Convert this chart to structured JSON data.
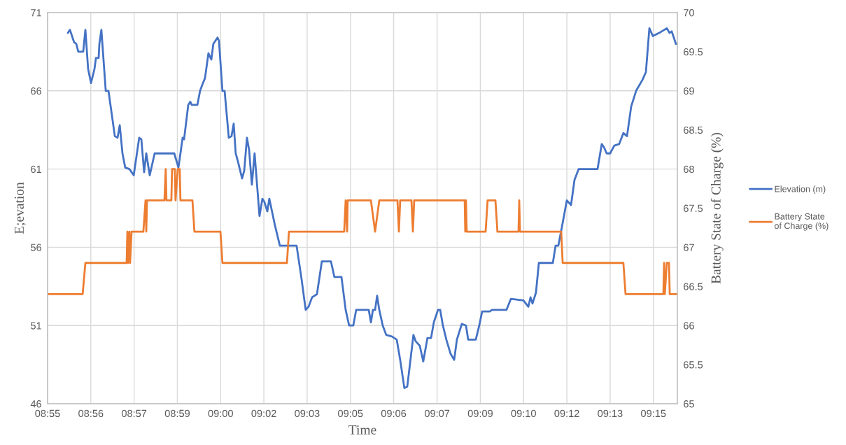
{
  "chart_data": {
    "type": "line",
    "xlabel": "Time",
    "ylabel": "E;evation",
    "y2label": "Battery State of Charge (%)",
    "xlim": [
      8.9095,
      9.256
    ],
    "ylim": [
      46,
      71
    ],
    "y2lim": [
      65,
      70
    ],
    "xticks": [
      {
        "value": 8.9095,
        "label": "08:55"
      },
      {
        "value": 8.9333,
        "label": "08:56"
      },
      {
        "value": 8.9571,
        "label": "08:57"
      },
      {
        "value": 8.9809,
        "label": "08:59"
      },
      {
        "value": 9.0047,
        "label": "09:00"
      },
      {
        "value": 9.0285,
        "label": "09:02"
      },
      {
        "value": 9.0523,
        "label": "09:03"
      },
      {
        "value": 9.0761,
        "label": "09:05"
      },
      {
        "value": 9.0999,
        "label": "09:06"
      },
      {
        "value": 9.1238,
        "label": "09:07"
      },
      {
        "value": 9.1476,
        "label": "09:09"
      },
      {
        "value": 9.1714,
        "label": "09:10"
      },
      {
        "value": 9.1952,
        "label": "09:12"
      },
      {
        "value": 9.219,
        "label": "09:13"
      },
      {
        "value": 9.2428,
        "label": "09:15"
      }
    ],
    "yticks": [
      46,
      51,
      56,
      61,
      66,
      71
    ],
    "y2ticks": [
      65,
      65.5,
      66,
      66.5,
      67,
      67.5,
      68,
      68.5,
      69,
      69.5,
      70
    ],
    "grid": true,
    "legend": "right",
    "line_style": "solid",
    "marker": "none",
    "series": [
      {
        "name": "Elevation (m)",
        "color": "#4472c4",
        "x": [
          8.9207,
          8.9218,
          8.9241,
          8.9253,
          8.9264,
          8.9291,
          8.9303,
          8.9318,
          8.9334,
          8.9353,
          8.9361,
          8.9376,
          8.938,
          8.9391,
          8.9415,
          8.943,
          8.9465,
          8.948,
          8.9492,
          8.9507,
          8.9522,
          8.9545,
          8.9569,
          8.9599,
          8.9611,
          8.9626,
          8.9638,
          8.9657,
          8.9684,
          8.9792,
          8.9815,
          8.9826,
          8.9838,
          8.9846,
          8.9869,
          8.988,
          8.9888,
          8.9919,
          8.9934,
          8.995,
          8.9961,
          8.998,
          8.9996,
          9.0007,
          9.003,
          9.0038,
          9.0057,
          9.0069,
          9.0092,
          9.0107,
          9.0119,
          9.013,
          9.0142,
          9.0165,
          9.0177,
          9.0192,
          9.0204,
          9.0219,
          9.0234,
          9.0261,
          9.0277,
          9.0288,
          9.0304,
          9.0315,
          9.0346,
          9.0373,
          9.0465,
          9.0492,
          9.0515,
          9.0531,
          9.055,
          9.0577,
          9.0604,
          9.0654,
          9.0673,
          9.0712,
          9.0735,
          9.0754,
          9.0777,
          9.0793,
          9.0862,
          9.0874,
          9.0885,
          9.0897,
          9.0908,
          9.092,
          9.0939,
          9.0958,
          9.0989,
          9.1016,
          9.1035,
          9.1058,
          9.1074,
          9.1108,
          9.112,
          9.1143,
          9.1162,
          9.1185,
          9.1205,
          9.122,
          9.1243,
          9.1255,
          9.127,
          9.1289,
          9.1312,
          9.1332,
          9.1347,
          9.1374,
          9.1397,
          9.1409,
          9.1451,
          9.147,
          9.1486,
          9.1528,
          9.154,
          9.162,
          9.1644,
          9.1713,
          9.174,
          9.1752,
          9.1763,
          9.1782,
          9.1798,
          9.1875,
          9.189,
          9.1905,
          9.1925,
          9.1952,
          9.1975,
          9.1994,
          9.2017,
          9.2121,
          9.2144,
          9.2156,
          9.2171,
          9.219,
          9.2213,
          9.224,
          9.2263,
          9.2283,
          9.2306,
          9.2333,
          9.2368,
          9.2387,
          9.2406,
          9.2425,
          9.246,
          9.2502,
          9.2517,
          9.2529,
          9.2552,
          9.256
        ],
        "values": [
          69.7,
          69.9,
          69.1,
          69.0,
          68.5,
          68.5,
          69.9,
          67.4,
          66.5,
          67.4,
          68.1,
          68.1,
          69.0,
          69.9,
          66.0,
          66.0,
          63.1,
          63.0,
          63.8,
          62.0,
          61.1,
          61.0,
          60.6,
          63.0,
          62.9,
          60.8,
          62.0,
          60.6,
          62.0,
          62.0,
          61.1,
          62.0,
          63.0,
          62.9,
          65.1,
          65.3,
          65.1,
          65.1,
          66.0,
          66.5,
          66.8,
          68.4,
          68.0,
          69.0,
          69.4,
          69.2,
          66.0,
          66.0,
          63.0,
          63.1,
          63.9,
          62.0,
          61.5,
          60.4,
          60.9,
          63.0,
          62.2,
          60.0,
          62.0,
          58.0,
          59.1,
          58.9,
          58.3,
          59.1,
          57.4,
          56.1,
          56.1,
          54.0,
          52.0,
          52.2,
          52.8,
          53.0,
          55.1,
          55.1,
          54.1,
          54.1,
          52.0,
          51.0,
          51.0,
          52.0,
          52.0,
          51.2,
          52.0,
          52.0,
          52.9,
          52.0,
          51.0,
          50.4,
          50.3,
          50.1,
          48.8,
          47.0,
          47.1,
          50.4,
          50.0,
          49.7,
          48.7,
          50.2,
          50.2,
          51.2,
          52.0,
          52.0,
          51.0,
          50.1,
          49.2,
          48.8,
          50.1,
          51.1,
          51.0,
          50.1,
          50.1,
          51.0,
          51.9,
          51.9,
          52.0,
          52.0,
          52.7,
          52.6,
          52.2,
          52.8,
          52.4,
          53.1,
          55.0,
          55.0,
          56.1,
          56.1,
          57.3,
          59.0,
          58.7,
          60.3,
          61.0,
          61.0,
          62.6,
          62.4,
          62.0,
          62.0,
          62.5,
          62.6,
          63.3,
          63.1,
          65.0,
          66.0,
          66.7,
          67.2,
          70.0,
          69.5,
          69.7,
          70.0,
          69.7,
          69.8,
          69.0,
          69.0
        ]
      },
      {
        "name": "Battery State\nof Charge (%)",
        "color": "#ed7d31",
        "axis": "y2",
        "x": [
          8.9095,
          8.9288,
          8.9303,
          8.953,
          8.9534,
          8.9538,
          8.9545,
          8.9549,
          8.9557,
          8.9622,
          8.9634,
          8.9638,
          8.9642,
          8.9738,
          8.9745,
          8.9749,
          8.9776,
          8.978,
          8.9795,
          8.9799,
          8.9811,
          8.9822,
          8.9826,
          8.9892,
          8.9903,
          9.0046,
          9.0057,
          9.0412,
          9.0423,
          9.0727,
          9.0735,
          9.0743,
          9.0746,
          9.0874,
          9.0897,
          9.092,
          9.102,
          9.1028,
          9.1035,
          9.1097,
          9.1105,
          9.1112,
          9.139,
          9.1393,
          9.1397,
          9.1401,
          9.1505,
          9.1516,
          9.1559,
          9.157,
          9.1686,
          9.169,
          9.1694,
          9.1921,
          9.1929,
          9.2263,
          9.2275,
          9.2483,
          9.2487,
          9.2491,
          9.2502,
          9.2514,
          9.2518,
          9.256
        ],
        "values": [
          66.4,
          66.4,
          66.8,
          66.8,
          67.2,
          66.8,
          67.2,
          66.8,
          67.2,
          67.2,
          67.6,
          67.2,
          67.6,
          67.6,
          68.0,
          67.6,
          67.6,
          68.0,
          68.0,
          67.6,
          68.0,
          68.0,
          67.6,
          67.6,
          67.2,
          67.2,
          66.8,
          66.8,
          67.2,
          67.2,
          67.6,
          67.2,
          67.6,
          67.6,
          67.2,
          67.6,
          67.6,
          67.2,
          67.6,
          67.6,
          67.2,
          67.6,
          67.6,
          67.2,
          67.6,
          67.2,
          67.2,
          67.6,
          67.6,
          67.2,
          67.2,
          67.6,
          67.2,
          67.2,
          66.8,
          66.8,
          66.4,
          66.4,
          66.8,
          66.4,
          66.8,
          66.8,
          66.4,
          66.4
        ]
      }
    ]
  }
}
